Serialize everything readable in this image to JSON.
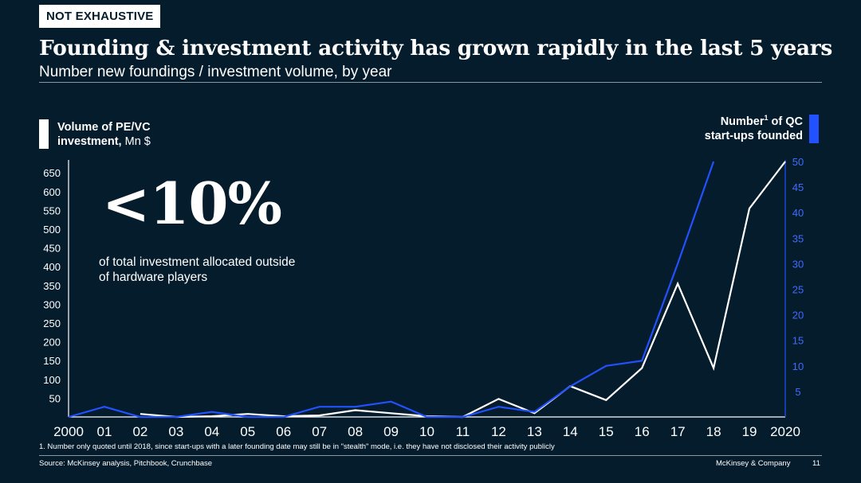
{
  "tag": "NOT EXHAUSTIVE",
  "title": "Founding & investment activity has grown rapidly in the last 5 years",
  "subtitle": "Number new foundings / investment volume, by year",
  "legend_left": {
    "line1": "Volume of PE/VC",
    "line2_bold": "investment,",
    "line2_rest": " Mn $"
  },
  "legend_right": {
    "line1_a": "Number",
    "line1_sup": "1",
    "line1_b": " of QC",
    "line2": "start-ups founded"
  },
  "callout": {
    "big": "<10%",
    "text": "of total investment allocated outside of hardware players"
  },
  "footnote": "1.    Number only quoted until 2018, since start-ups with a later founding date may still be in \"stealth\" mode, i.e. they have not disclosed their activity publicly",
  "source": "Source: McKinsey analysis, Pitchbook, Crunchbase",
  "brand": "McKinsey & Company",
  "page_number": "11",
  "colors": {
    "background": "#051c2c",
    "investment_line": "#ffffff",
    "startups_line": "#2251ff"
  },
  "chart_data": {
    "type": "line",
    "categories": [
      "2000",
      "01",
      "02",
      "03",
      "04",
      "05",
      "06",
      "07",
      "08",
      "09",
      "10",
      "11",
      "12",
      "13",
      "14",
      "15",
      "16",
      "17",
      "18",
      "19",
      "2020"
    ],
    "series": [
      {
        "name": "Volume of PE/VC investment, Mn $",
        "axis": "left",
        "values": [
          null,
          null,
          8,
          0,
          2,
          8,
          2,
          4,
          18,
          10,
          2,
          0,
          48,
          10,
          82,
          45,
          130,
          355,
          130,
          555,
          680
        ]
      },
      {
        "name": "Number of QC start-ups founded",
        "axis": "right",
        "values": [
          0,
          2,
          0,
          0,
          1,
          0,
          0,
          2,
          2,
          3,
          0,
          0,
          2,
          1,
          6,
          10,
          11,
          30,
          50,
          null,
          null
        ]
      }
    ],
    "left_axis": {
      "ticks": [
        50,
        100,
        150,
        200,
        250,
        300,
        350,
        400,
        450,
        500,
        550,
        600,
        650
      ],
      "range": [
        0,
        680
      ]
    },
    "right_axis": {
      "ticks": [
        5,
        10,
        15,
        20,
        25,
        30,
        35,
        40,
        45,
        50
      ],
      "range": [
        0,
        50
      ]
    }
  }
}
